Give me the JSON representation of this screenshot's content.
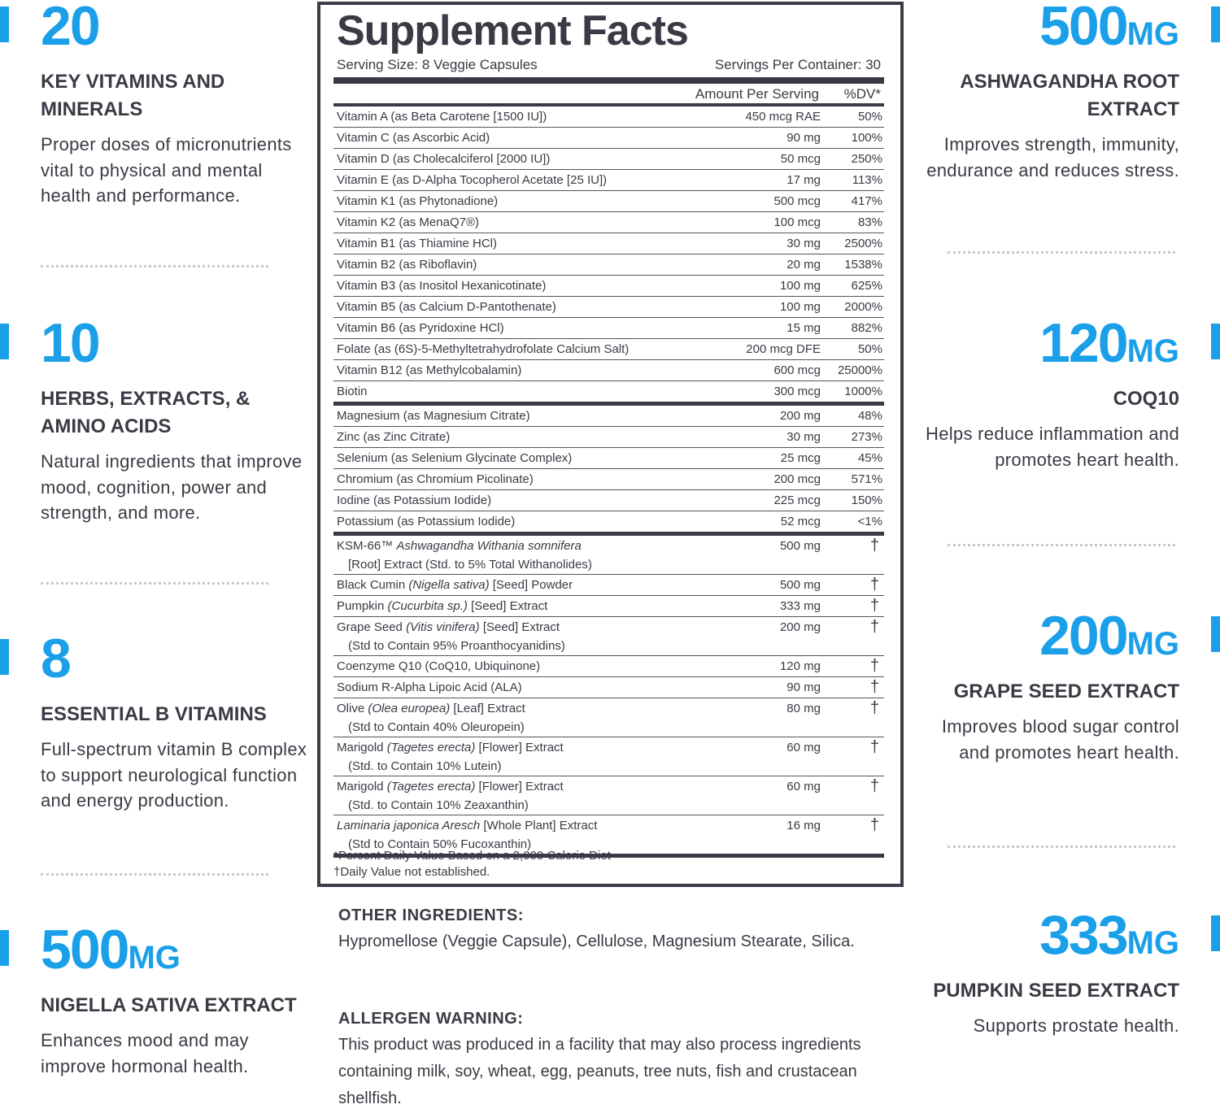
{
  "left": [
    {
      "number": "20",
      "unit": "",
      "title": "KEY VITAMINS AND MINERALS",
      "desc": "Proper doses of micronutrients vital to physical and mental health and performance."
    },
    {
      "number": "10",
      "unit": "",
      "title": "HERBS, EXTRACTS, & AMINO ACIDS",
      "desc": "Natural ingredients that improve mood, cognition, power and strength, and more."
    },
    {
      "number": "8",
      "unit": "",
      "title": "ESSENTIAL B VITAMINS",
      "desc": "Full-spectrum vitamin B complex to support neurological function and energy production."
    },
    {
      "number": "500",
      "unit": "MG",
      "title": "NIGELLA SATIVA EXTRACT",
      "desc": "Enhances mood and may improve hormonal health."
    }
  ],
  "right": [
    {
      "number": "500",
      "unit": "MG",
      "title": "ASHWAGANDHA ROOT EXTRACT",
      "desc": "Improves strength, immunity, endurance and reduces stress."
    },
    {
      "number": "120",
      "unit": "MG",
      "title": "COQ10",
      "desc": "Helps reduce inflammation and promotes heart health."
    },
    {
      "number": "200",
      "unit": "MG",
      "title": "GRAPE SEED EXTRACT",
      "desc": "Improves blood sugar control and promotes heart health."
    },
    {
      "number": "333",
      "unit": "MG",
      "title": "PUMPKIN SEED EXTRACT",
      "desc": "Supports prostate health."
    }
  ],
  "label": {
    "title": "Supplement Facts",
    "serving_size": "Serving Size: 8 Veggie Capsules",
    "servings_per_container": "Servings Per Container: 30",
    "amount_header": "Amount Per Serving",
    "dv_header": "%DV*",
    "rows": [
      {
        "name": "Vitamin A (as Beta Carotene [1500 IU])",
        "amount": "450 mcg RAE",
        "dv": "50%"
      },
      {
        "name": "Vitamin C (as Ascorbic Acid)",
        "amount": "90 mg",
        "dv": "100%"
      },
      {
        "name": "Vitamin D (as Cholecalciferol [2000 IU])",
        "amount": "50 mcg",
        "dv": "250%"
      },
      {
        "name": "Vitamin E (as D-Alpha Tocopherol Acetate [25 IU])",
        "amount": "17 mg",
        "dv": "113%"
      },
      {
        "name": "Vitamin K1 (as Phytonadione)",
        "amount": "500 mcg",
        "dv": "417%"
      },
      {
        "name": "Vitamin K2 (as MenaQ7®)",
        "amount": "100 mcg",
        "dv": "83%"
      },
      {
        "name": "Vitamin B1 (as Thiamine HCl)",
        "amount": "30 mg",
        "dv": "2500%"
      },
      {
        "name": "Vitamin B2 (as Riboflavin)",
        "amount": "20 mg",
        "dv": "1538%"
      },
      {
        "name": "Vitamin B3 (as Inositol Hexanicotinate)",
        "amount": "100 mg",
        "dv": "625%"
      },
      {
        "name": "Vitamin B5 (as Calcium D-Pantothenate)",
        "amount": "100 mg",
        "dv": "2000%"
      },
      {
        "name": "Vitamin B6 (as Pyridoxine HCl)",
        "amount": "15 mg",
        "dv": "882%"
      },
      {
        "name": "Folate (as (6S)-5-Methyltetrahydrofolate Calcium Salt)",
        "amount": "200 mcg DFE",
        "dv": "50%"
      },
      {
        "name": "Vitamin B12 (as Methylcobalamin)",
        "amount": "600 mcg",
        "dv": "25000%"
      },
      {
        "name": "Biotin",
        "amount": "300 mcg",
        "dv": "1000%",
        "thick": true
      },
      {
        "name": "Magnesium (as Magnesium Citrate)",
        "amount": "200 mg",
        "dv": "48%"
      },
      {
        "name": "Zinc (as Zinc Citrate)",
        "amount": "30 mg",
        "dv": "273%"
      },
      {
        "name": "Selenium (as Selenium Glycinate Complex)",
        "amount": "25 mcg",
        "dv": "45%"
      },
      {
        "name": "Chromium (as Chromium Picolinate)",
        "amount": "200 mcg",
        "dv": "571%"
      },
      {
        "name": "Iodine (as Potassium Iodide)",
        "amount": "225 mcg",
        "dv": "150%"
      },
      {
        "name": "Potassium (as Potassium Iodide)",
        "amount": "52 mcg",
        "dv": "<1%",
        "thick": true
      },
      {
        "name": "KSM-66™ ",
        "italic": "Ashwagandha Withania somnifera",
        "rest": "",
        "sub": "[Root] Extract (Std. to 5% Total Withanolides)",
        "amount": "500 mg",
        "dv": "†"
      },
      {
        "name": "Black Cumin ",
        "italic": "(Nigella sativa)",
        "rest": " [Seed] Powder",
        "amount": "500 mg",
        "dv": "†"
      },
      {
        "name": "Pumpkin ",
        "italic": "(Cucurbita sp.)",
        "rest": " [Seed] Extract",
        "amount": "333 mg",
        "dv": "†"
      },
      {
        "name": "Grape Seed ",
        "italic": "(Vitis vinifera)",
        "rest": " [Seed] Extract",
        "sub": "(Std to Contain 95% Proanthocyanidins)",
        "amount": "200 mg",
        "dv": "†"
      },
      {
        "name": "Coenzyme Q10 (CoQ10, Ubiquinone)",
        "amount": "120 mg",
        "dv": "†"
      },
      {
        "name": "Sodium R-Alpha Lipoic Acid (ALA)",
        "amount": "90 mg",
        "dv": "†"
      },
      {
        "name": "Olive ",
        "italic": "(Olea europea)",
        "rest": " [Leaf] Extract",
        "sub": "(Std to Contain 40% Oleuropein)",
        "amount": "80 mg",
        "dv": "†"
      },
      {
        "name": "Marigold ",
        "italic": "(Tagetes erecta)",
        "rest": " [Flower] Extract",
        "sub": "(Std. to Contain 10% Lutein)",
        "amount": "60 mg",
        "dv": "†"
      },
      {
        "name": "Marigold ",
        "italic": "(Tagetes erecta)",
        "rest": " [Flower] Extract",
        "sub": "(Std. to Contain 10% Zeaxanthin)",
        "amount": "60 mg",
        "dv": "†"
      },
      {
        "name": "",
        "italic": "Laminaria japonica Aresch",
        "rest": " [Whole Plant] Extract",
        "sub": "(Std to Contain 50% Fucoxanthin)",
        "amount": "16 mg",
        "dv": "†",
        "thick": true
      }
    ],
    "footnote1": "*Percent Daily Value Based on a 2,000 Calorie Diet",
    "footnote2": "†Daily Value not established."
  },
  "other_ingredients": {
    "heading": "OTHER INGREDIENTS:",
    "text": "Hypromellose (Veggie Capsule), Cellulose, Magnesium Stearate, Silica."
  },
  "allergen": {
    "heading": "ALLERGEN WARNING:",
    "text": "This product was produced in a facility that may also process ingredients containing milk, soy, wheat, egg, peanuts, tree nuts, fish and crustacean shellfish."
  },
  "colors": {
    "accent": "#1a9fe8",
    "text": "#3a3a44"
  }
}
